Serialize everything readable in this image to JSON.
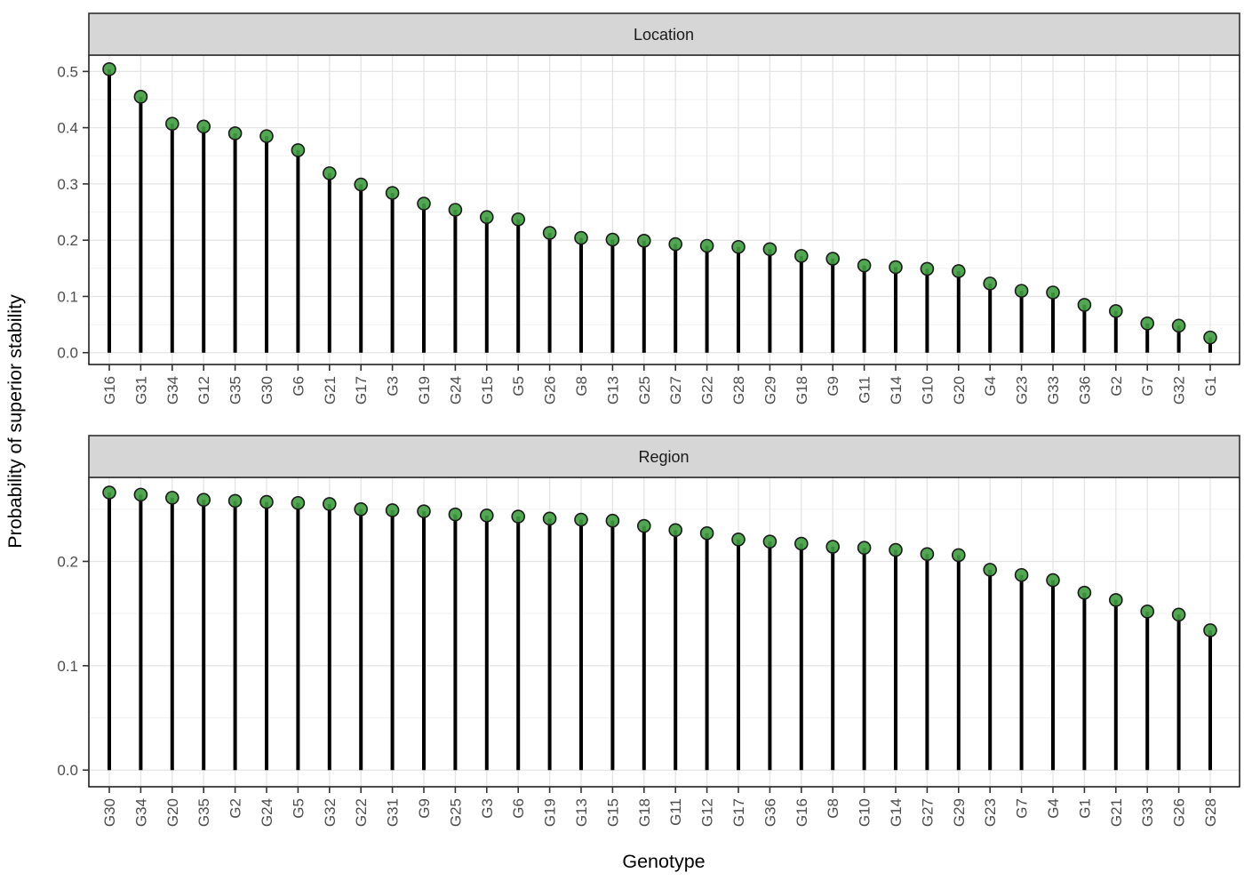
{
  "axes": {
    "y_title": "Probability of superior stability",
    "x_title": "Genotype"
  },
  "style": {
    "point_fill": "#3f9e3f",
    "point_opacity": 0.9,
    "point_stroke": "#1a1a1a",
    "stem_color": "#000000",
    "strip_bg": "#d6d6d6",
    "strip_border": "#2e2e2e",
    "panel_border": "#000000",
    "panel_bg": "#ffffff",
    "grid_major": "#e4e4e4",
    "grid_minor": "#f0f0f0",
    "tick_color": "#333333",
    "tick_label_color": "#4d4d4d"
  },
  "chart_data": [
    {
      "type": "bar",
      "style": "lollipop",
      "facet": "Location",
      "xlabel": "Genotype",
      "ylabel": "Probability of superior stability",
      "grid": true,
      "legend": "none",
      "categories": [
        "G16",
        "G31",
        "G34",
        "G12",
        "G35",
        "G30",
        "G6",
        "G21",
        "G17",
        "G3",
        "G19",
        "G24",
        "G15",
        "G5",
        "G26",
        "G8",
        "G13",
        "G25",
        "G27",
        "G22",
        "G28",
        "G29",
        "G18",
        "G9",
        "G11",
        "G14",
        "G10",
        "G20",
        "G4",
        "G23",
        "G33",
        "G36",
        "G2",
        "G7",
        "G32",
        "G1"
      ],
      "values": [
        0.504,
        0.455,
        0.407,
        0.402,
        0.39,
        0.385,
        0.36,
        0.319,
        0.299,
        0.284,
        0.265,
        0.254,
        0.241,
        0.237,
        0.213,
        0.204,
        0.201,
        0.199,
        0.193,
        0.19,
        0.188,
        0.184,
        0.172,
        0.167,
        0.155,
        0.152,
        0.149,
        0.145,
        0.123,
        0.11,
        0.107,
        0.085,
        0.074,
        0.052,
        0.048,
        0.027
      ],
      "yticks": [
        0.0,
        0.1,
        0.2,
        0.3,
        0.4,
        0.5
      ],
      "ylim": [
        -0.021,
        0.529
      ]
    },
    {
      "type": "bar",
      "style": "lollipop",
      "facet": "Region",
      "xlabel": "Genotype",
      "ylabel": "Probability of superior stability",
      "grid": true,
      "legend": "none",
      "categories": [
        "G30",
        "G34",
        "G20",
        "G35",
        "G2",
        "G24",
        "G5",
        "G32",
        "G22",
        "G31",
        "G9",
        "G25",
        "G3",
        "G6",
        "G19",
        "G13",
        "G15",
        "G18",
        "G11",
        "G12",
        "G17",
        "G36",
        "G16",
        "G8",
        "G10",
        "G14",
        "G27",
        "G29",
        "G23",
        "G7",
        "G4",
        "G1",
        "G21",
        "G33",
        "G26",
        "G28"
      ],
      "values": [
        0.266,
        0.264,
        0.261,
        0.259,
        0.258,
        0.257,
        0.256,
        0.255,
        0.25,
        0.249,
        0.248,
        0.245,
        0.244,
        0.243,
        0.241,
        0.24,
        0.239,
        0.234,
        0.23,
        0.227,
        0.221,
        0.219,
        0.217,
        0.214,
        0.213,
        0.211,
        0.207,
        0.206,
        0.192,
        0.187,
        0.182,
        0.17,
        0.163,
        0.152,
        0.149,
        0.134
      ],
      "yticks": [
        0.0,
        0.1,
        0.2
      ],
      "ylim": [
        -0.016,
        0.2805
      ]
    }
  ]
}
